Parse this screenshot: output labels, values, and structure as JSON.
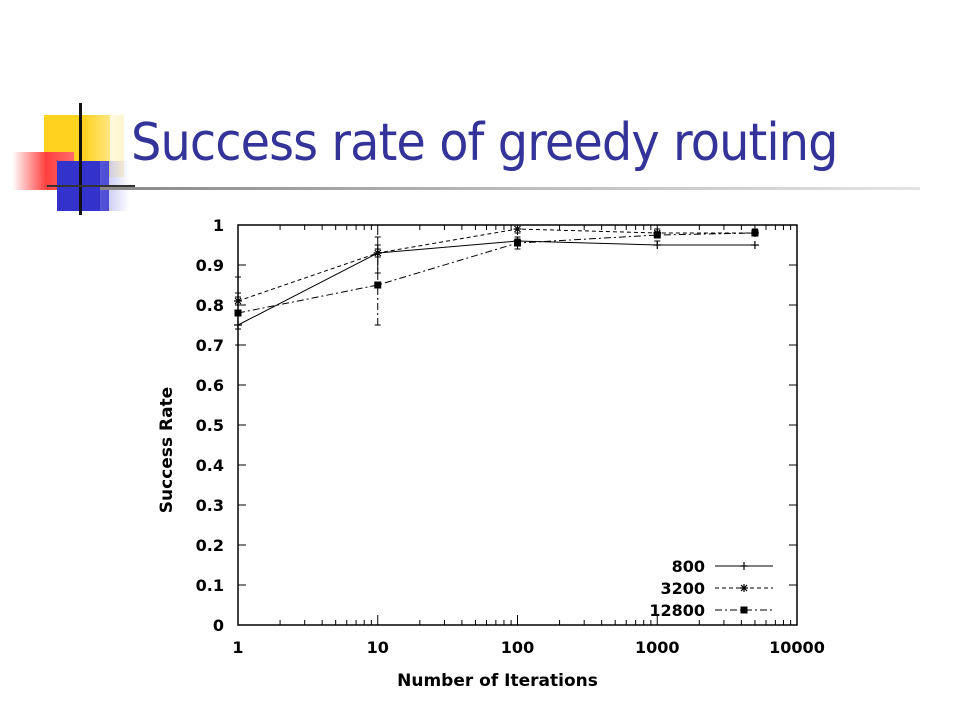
{
  "slide": {
    "title": "Success rate of greedy routing"
  },
  "chart_data": {
    "type": "line",
    "xlabel": "Number of Iterations",
    "ylabel": "Success Rate",
    "x_scale": "log",
    "xlim": [
      1,
      10000
    ],
    "ylim": [
      0,
      1
    ],
    "x_ticks": [
      1,
      10,
      100,
      1000,
      10000
    ],
    "x_tick_labels": [
      "1",
      "10",
      "100",
      "1000",
      "10000"
    ],
    "y_ticks": [
      0,
      0.1,
      0.2,
      0.3,
      0.4,
      0.5,
      0.6,
      0.7,
      0.8,
      0.9,
      1
    ],
    "y_tick_labels": [
      "0",
      "0.1",
      "0.2",
      "0.3",
      "0.4",
      "0.5",
      "0.6",
      "0.7",
      "0.8",
      "0.9",
      "1"
    ],
    "grid": false,
    "legend_position": "bottom-right",
    "series": [
      {
        "name": "800",
        "marker": "plus",
        "dash": "solid",
        "x": [
          1,
          10,
          100,
          1000,
          5000
        ],
        "y": [
          0.75,
          0.93,
          0.96,
          0.95,
          0.95
        ],
        "err_low": [
          0.74,
          0.88,
          0.95,
          0.95,
          0.95
        ],
        "err_high": [
          0.87,
          0.97,
          0.97,
          0.96,
          0.95
        ]
      },
      {
        "name": "3200",
        "marker": "asterisk",
        "dash": "dashed",
        "x": [
          1,
          10,
          100,
          1000,
          5000
        ],
        "y": [
          0.81,
          0.93,
          0.99,
          0.98,
          0.98
        ],
        "err_low": [
          0.8,
          0.92,
          0.98,
          0.98,
          0.98
        ],
        "err_high": [
          0.82,
          0.94,
          1.0,
          0.99,
          0.99
        ]
      },
      {
        "name": "12800",
        "marker": "square",
        "dash": "dashdot",
        "x": [
          1,
          10,
          100,
          1000,
          5000
        ],
        "y": [
          0.78,
          0.85,
          0.955,
          0.975,
          0.98
        ],
        "err_low": [
          0.7,
          0.75,
          0.94,
          0.97,
          0.975
        ],
        "err_high": [
          0.83,
          0.95,
          0.965,
          0.98,
          0.985
        ]
      }
    ]
  }
}
